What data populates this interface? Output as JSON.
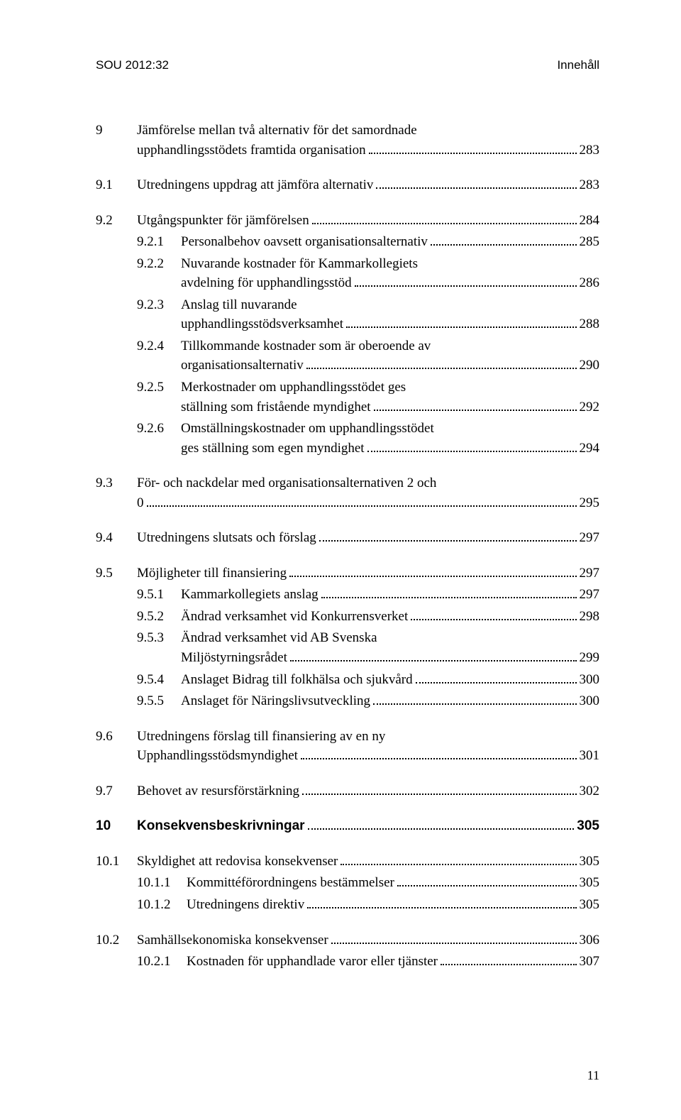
{
  "header": {
    "left": "SOU 2012:32",
    "right": "Innehåll"
  },
  "entries": [
    {
      "group": "section",
      "items": [
        {
          "level": "l1",
          "num": "9",
          "lines": [
            "Jämförelse mellan två alternativ för det samordnade",
            "upphandlingsstödets framtida organisation"
          ],
          "page": "283"
        }
      ]
    },
    {
      "group": "section",
      "items": [
        {
          "level": "l1",
          "num": "9.1",
          "lines": [
            "Utredningens uppdrag att jämföra alternativ"
          ],
          "page": "283"
        }
      ]
    },
    {
      "group": "section",
      "items": [
        {
          "level": "l1",
          "num": "9.2",
          "lines": [
            "Utgångspunkter för jämförelsen"
          ],
          "page": "284"
        },
        {
          "level": "l2",
          "num": "9.2.1",
          "lines": [
            "Personalbehov oavsett organisationsalternativ"
          ],
          "page": "285"
        },
        {
          "level": "l2",
          "num": "9.2.2",
          "lines": [
            "Nuvarande kostnader för Kammarkollegiets",
            "avdelning för upphandlingsstöd"
          ],
          "page": "286"
        },
        {
          "level": "l2",
          "num": "9.2.3",
          "lines": [
            "Anslag till nuvarande",
            "upphandlingsstödsverksamhet"
          ],
          "page": "288"
        },
        {
          "level": "l2",
          "num": "9.2.4",
          "lines": [
            "Tillkommande kostnader som är oberoende av",
            "organisationsalternativ"
          ],
          "page": "290"
        },
        {
          "level": "l2",
          "num": "9.2.5",
          "lines": [
            "Merkostnader om upphandlingsstödet ges",
            "ställning som fristående myndighet"
          ],
          "page": "292"
        },
        {
          "level": "l2",
          "num": "9.2.6",
          "lines": [
            "Omställningskostnader om upphandlingsstödet",
            "ges ställning som egen myndighet"
          ],
          "page": "294"
        }
      ]
    },
    {
      "group": "section",
      "items": [
        {
          "level": "l1",
          "num": "9.3",
          "lines": [
            "För- och nackdelar med organisationsalternativen 2 och",
            "0"
          ],
          "page": "295"
        }
      ]
    },
    {
      "group": "section",
      "items": [
        {
          "level": "l1",
          "num": "9.4",
          "lines": [
            "Utredningens slutsats och förslag"
          ],
          "page": "297"
        }
      ]
    },
    {
      "group": "section",
      "items": [
        {
          "level": "l1",
          "num": "9.5",
          "lines": [
            "Möjligheter till finansiering"
          ],
          "page": "297"
        },
        {
          "level": "l2",
          "num": "9.5.1",
          "lines": [
            "Kammarkollegiets anslag"
          ],
          "page": "297"
        },
        {
          "level": "l2",
          "num": "9.5.2",
          "lines": [
            "Ändrad verksamhet vid Konkurrensverket"
          ],
          "page": "298"
        },
        {
          "level": "l2",
          "num": "9.5.3",
          "lines": [
            "Ändrad verksamhet vid AB Svenska",
            "Miljöstyrningsrådet"
          ],
          "page": "299"
        },
        {
          "level": "l2",
          "num": "9.5.4",
          "lines": [
            "Anslaget Bidrag till folkhälsa och sjukvård"
          ],
          "page": "300"
        },
        {
          "level": "l2",
          "num": "9.5.5",
          "lines": [
            "Anslaget för Näringslivsutveckling"
          ],
          "page": "300"
        }
      ]
    },
    {
      "group": "section",
      "items": [
        {
          "level": "l1",
          "num": "9.6",
          "lines": [
            "Utredningens förslag till finansiering av en ny",
            "Upphandlingsstödsmyndighet"
          ],
          "page": "301"
        }
      ]
    },
    {
      "group": "section",
      "items": [
        {
          "level": "l1",
          "num": "9.7",
          "lines": [
            "Behovet av resursförstärkning"
          ],
          "page": "302"
        }
      ]
    },
    {
      "group": "chapter",
      "items": [
        {
          "level": "ch",
          "num": "10",
          "lines": [
            "Konsekvensbeskrivningar"
          ],
          "page": "305",
          "chapter": true
        }
      ]
    },
    {
      "group": "section",
      "items": [
        {
          "level": "ch2",
          "num": "10.1",
          "lines": [
            "Skyldighet att redovisa konsekvenser"
          ],
          "page": "305"
        },
        {
          "level": "ch3",
          "num": "10.1.1",
          "lines": [
            "Kommittéförordningens bestämmelser"
          ],
          "page": "305"
        },
        {
          "level": "ch3",
          "num": "10.1.2",
          "lines": [
            "Utredningens direktiv"
          ],
          "page": "305"
        }
      ]
    },
    {
      "group": "section",
      "items": [
        {
          "level": "ch2",
          "num": "10.2",
          "lines": [
            "Samhällsekonomiska konsekvenser"
          ],
          "page": "306"
        },
        {
          "level": "ch3",
          "num": "10.2.1",
          "lines": [
            "Kostnaden för upphandlade varor eller tjänster"
          ],
          "page": "307"
        }
      ]
    }
  ],
  "pageNumber": "11"
}
